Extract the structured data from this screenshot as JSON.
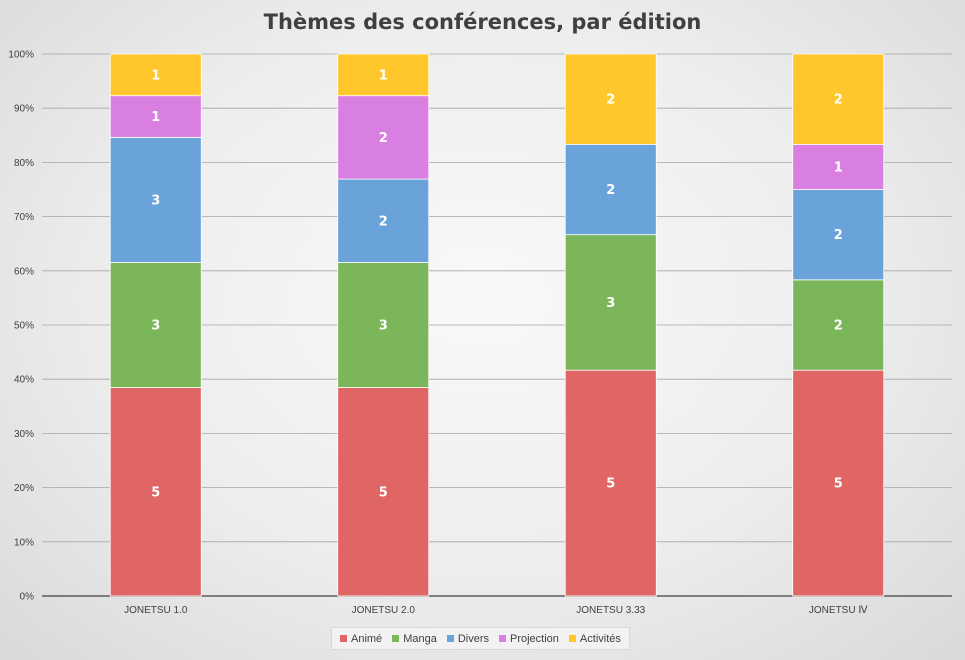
{
  "chart_data": {
    "type": "bar",
    "stacked": "percent",
    "title": "Thèmes des conférences, par édition",
    "categories": [
      "JONETSU 1.0",
      "JONETSU 2.0",
      "JONETSU 3.33",
      "JONETSU Ⅳ"
    ],
    "y_ticks": [
      "0%",
      "10%",
      "20%",
      "30%",
      "40%",
      "50%",
      "60%",
      "70%",
      "80%",
      "90%",
      "100%"
    ],
    "ylim": [
      0,
      100
    ],
    "grid": true,
    "legend_position": "bottom",
    "series": [
      {
        "name": "Animé",
        "color": "#e06666",
        "values": [
          5,
          5,
          5,
          5
        ]
      },
      {
        "name": "Manga",
        "color": "#7cb65a",
        "values": [
          3,
          3,
          3,
          2
        ]
      },
      {
        "name": "Divers",
        "color": "#6aa2da",
        "values": [
          3,
          2,
          2,
          2
        ]
      },
      {
        "name": "Projection",
        "color": "#da7fe2",
        "values": [
          1,
          2,
          0,
          1
        ]
      },
      {
        "name": "Activités",
        "color": "#ffc72c",
        "values": [
          1,
          1,
          2,
          2
        ]
      }
    ]
  }
}
